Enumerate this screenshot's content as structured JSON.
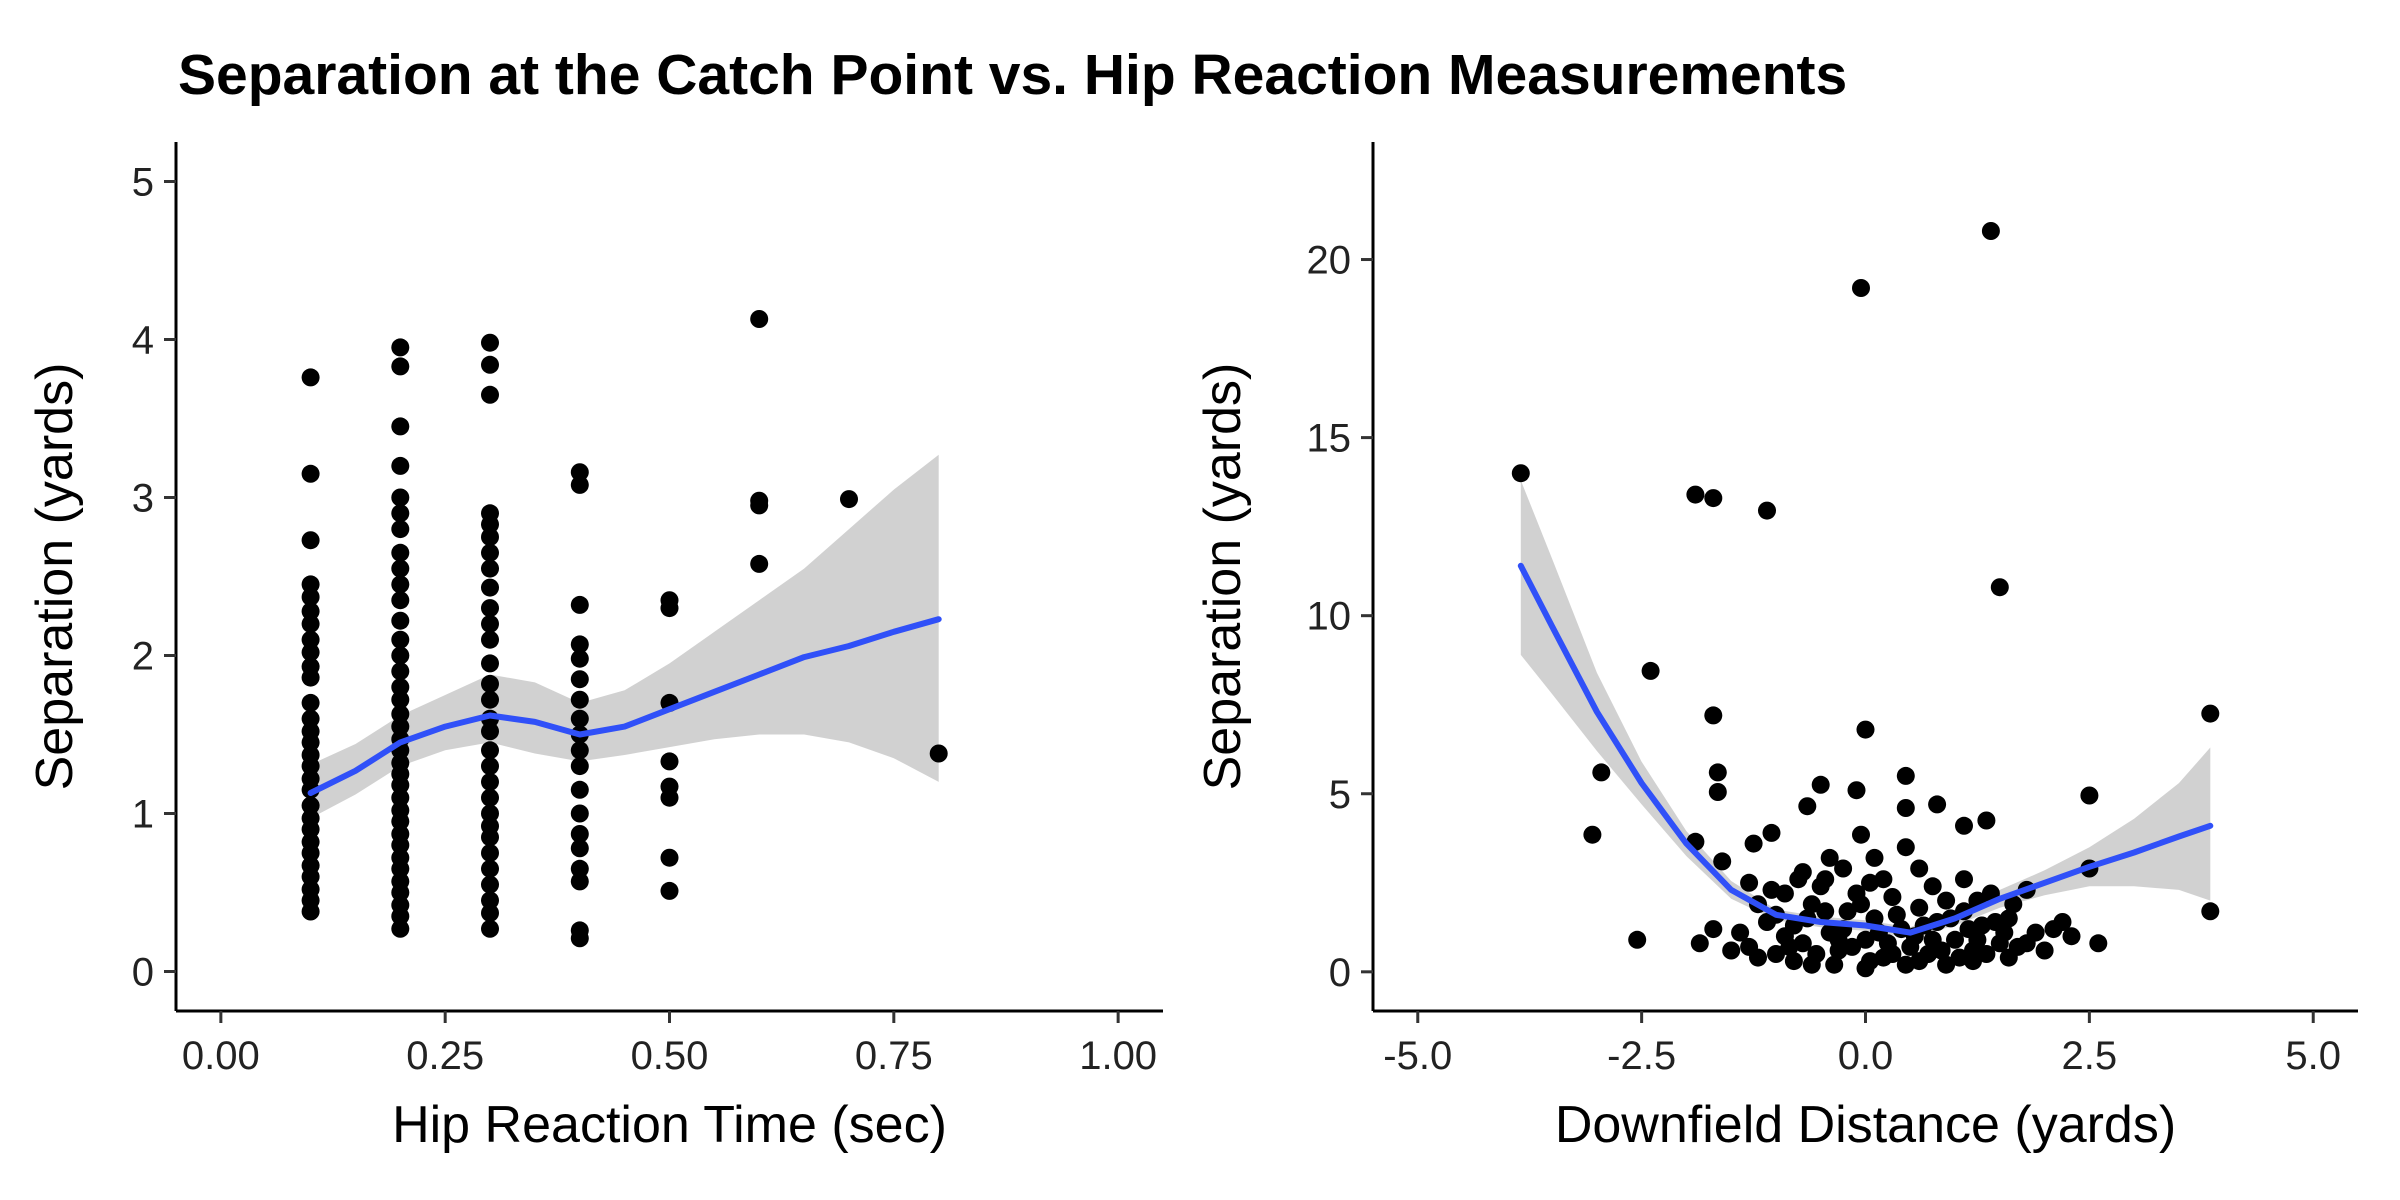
{
  "chart_data": [
    {
      "type": "scatter",
      "title": "Separation at the Catch Point vs. Hip Reaction Measurements",
      "xlabel": "Hip Reaction Time (sec)",
      "ylabel": "Separation (yards)",
      "xlim": [
        -0.05,
        1.05
      ],
      "ylim": [
        -0.25,
        5.25
      ],
      "xticks": [
        0.0,
        0.25,
        0.5,
        0.75,
        1.0
      ],
      "xtick_labels": [
        "0.00",
        "0.25",
        "0.50",
        "0.75",
        "1.00"
      ],
      "yticks": [
        0,
        1,
        2,
        3,
        4,
        5
      ],
      "ytick_labels": [
        "0",
        "1",
        "2",
        "3",
        "4",
        "5"
      ],
      "grid": false,
      "point_color": "#000000",
      "smooth_color": "#3050f8",
      "band_color": "#cccccc",
      "points": [
        [
          0.1,
          3.76
        ],
        [
          0.1,
          3.15
        ],
        [
          0.1,
          2.73
        ],
        [
          0.1,
          2.45
        ],
        [
          0.1,
          2.37
        ],
        [
          0.1,
          2.28
        ],
        [
          0.1,
          2.2
        ],
        [
          0.1,
          2.1
        ],
        [
          0.1,
          2.02
        ],
        [
          0.1,
          1.93
        ],
        [
          0.1,
          1.86
        ],
        [
          0.1,
          1.7
        ],
        [
          0.1,
          1.6
        ],
        [
          0.1,
          1.52
        ],
        [
          0.1,
          1.45
        ],
        [
          0.1,
          1.37
        ],
        [
          0.1,
          1.3
        ],
        [
          0.1,
          1.22
        ],
        [
          0.1,
          1.15
        ],
        [
          0.1,
          1.05
        ],
        [
          0.1,
          0.97
        ],
        [
          0.1,
          0.9
        ],
        [
          0.1,
          0.82
        ],
        [
          0.1,
          0.75
        ],
        [
          0.1,
          0.67
        ],
        [
          0.1,
          0.6
        ],
        [
          0.1,
          0.52
        ],
        [
          0.1,
          0.45
        ],
        [
          0.1,
          0.38
        ],
        [
          0.2,
          3.95
        ],
        [
          0.2,
          3.83
        ],
        [
          0.2,
          3.45
        ],
        [
          0.2,
          3.2
        ],
        [
          0.2,
          3.0
        ],
        [
          0.2,
          2.9
        ],
        [
          0.2,
          2.8
        ],
        [
          0.2,
          2.65
        ],
        [
          0.2,
          2.55
        ],
        [
          0.2,
          2.45
        ],
        [
          0.2,
          2.35
        ],
        [
          0.2,
          2.22
        ],
        [
          0.2,
          2.1
        ],
        [
          0.2,
          2.0
        ],
        [
          0.2,
          1.9
        ],
        [
          0.2,
          1.8
        ],
        [
          0.2,
          1.72
        ],
        [
          0.2,
          1.63
        ],
        [
          0.2,
          1.55
        ],
        [
          0.2,
          1.47
        ],
        [
          0.2,
          1.4
        ],
        [
          0.2,
          1.32
        ],
        [
          0.2,
          1.25
        ],
        [
          0.2,
          1.18
        ],
        [
          0.2,
          1.1
        ],
        [
          0.2,
          1.02
        ],
        [
          0.2,
          0.95
        ],
        [
          0.2,
          0.87
        ],
        [
          0.2,
          0.8
        ],
        [
          0.2,
          0.72
        ],
        [
          0.2,
          0.65
        ],
        [
          0.2,
          0.57
        ],
        [
          0.2,
          0.5
        ],
        [
          0.2,
          0.42
        ],
        [
          0.2,
          0.35
        ],
        [
          0.2,
          0.27
        ],
        [
          0.3,
          3.98
        ],
        [
          0.3,
          3.84
        ],
        [
          0.3,
          3.65
        ],
        [
          0.3,
          2.9
        ],
        [
          0.3,
          2.83
        ],
        [
          0.3,
          2.75
        ],
        [
          0.3,
          2.65
        ],
        [
          0.3,
          2.55
        ],
        [
          0.3,
          2.43
        ],
        [
          0.3,
          2.3
        ],
        [
          0.3,
          2.2
        ],
        [
          0.3,
          2.1
        ],
        [
          0.3,
          1.95
        ],
        [
          0.3,
          1.82
        ],
        [
          0.3,
          1.72
        ],
        [
          0.3,
          1.6
        ],
        [
          0.3,
          1.52
        ],
        [
          0.3,
          1.4
        ],
        [
          0.3,
          1.3
        ],
        [
          0.3,
          1.2
        ],
        [
          0.3,
          1.1
        ],
        [
          0.3,
          1.0
        ],
        [
          0.3,
          0.92
        ],
        [
          0.3,
          0.85
        ],
        [
          0.3,
          0.75
        ],
        [
          0.3,
          0.65
        ],
        [
          0.3,
          0.55
        ],
        [
          0.3,
          0.45
        ],
        [
          0.3,
          0.37
        ],
        [
          0.3,
          0.27
        ],
        [
          0.4,
          3.16
        ],
        [
          0.4,
          3.08
        ],
        [
          0.4,
          2.32
        ],
        [
          0.4,
          2.07
        ],
        [
          0.4,
          1.98
        ],
        [
          0.4,
          1.85
        ],
        [
          0.4,
          1.72
        ],
        [
          0.4,
          1.6
        ],
        [
          0.4,
          1.5
        ],
        [
          0.4,
          1.4
        ],
        [
          0.4,
          1.3
        ],
        [
          0.4,
          1.15
        ],
        [
          0.4,
          1.0
        ],
        [
          0.4,
          0.87
        ],
        [
          0.4,
          0.78
        ],
        [
          0.4,
          0.65
        ],
        [
          0.4,
          0.57
        ],
        [
          0.4,
          0.26
        ],
        [
          0.4,
          0.21
        ],
        [
          0.5,
          2.35
        ],
        [
          0.5,
          2.3
        ],
        [
          0.5,
          1.7
        ],
        [
          0.5,
          1.33
        ],
        [
          0.5,
          1.17
        ],
        [
          0.5,
          1.1
        ],
        [
          0.5,
          0.72
        ],
        [
          0.5,
          0.51
        ],
        [
          0.6,
          4.13
        ],
        [
          0.6,
          2.98
        ],
        [
          0.6,
          2.95
        ],
        [
          0.6,
          2.58
        ],
        [
          0.7,
          2.99
        ],
        [
          0.8,
          1.38
        ]
      ],
      "smooth": [
        [
          0.1,
          1.13
        ],
        [
          0.15,
          1.27
        ],
        [
          0.2,
          1.45
        ],
        [
          0.25,
          1.55
        ],
        [
          0.3,
          1.62
        ],
        [
          0.35,
          1.58
        ],
        [
          0.4,
          1.5
        ],
        [
          0.45,
          1.55
        ],
        [
          0.5,
          1.66
        ],
        [
          0.55,
          1.77
        ],
        [
          0.6,
          1.88
        ],
        [
          0.65,
          1.99
        ],
        [
          0.7,
          2.06
        ],
        [
          0.75,
          2.15
        ],
        [
          0.8,
          2.23
        ]
      ],
      "band_upper": [
        [
          0.1,
          1.31
        ],
        [
          0.15,
          1.44
        ],
        [
          0.2,
          1.62
        ],
        [
          0.25,
          1.75
        ],
        [
          0.3,
          1.88
        ],
        [
          0.35,
          1.83
        ],
        [
          0.4,
          1.7
        ],
        [
          0.45,
          1.78
        ],
        [
          0.5,
          1.95
        ],
        [
          0.55,
          2.15
        ],
        [
          0.6,
          2.35
        ],
        [
          0.65,
          2.55
        ],
        [
          0.7,
          2.8
        ],
        [
          0.75,
          3.05
        ],
        [
          0.8,
          3.27
        ]
      ],
      "band_lower": [
        [
          0.1,
          0.97
        ],
        [
          0.15,
          1.12
        ],
        [
          0.2,
          1.3
        ],
        [
          0.25,
          1.4
        ],
        [
          0.3,
          1.45
        ],
        [
          0.35,
          1.38
        ],
        [
          0.4,
          1.33
        ],
        [
          0.45,
          1.37
        ],
        [
          0.5,
          1.42
        ],
        [
          0.55,
          1.47
        ],
        [
          0.6,
          1.5
        ],
        [
          0.65,
          1.5
        ],
        [
          0.7,
          1.45
        ],
        [
          0.75,
          1.35
        ],
        [
          0.8,
          1.2
        ]
      ]
    },
    {
      "type": "scatter",
      "xlabel": "Downfield Distance (yards)",
      "ylabel": "Separation (yards)",
      "xlim": [
        -5.5,
        5.5
      ],
      "ylim": [
        -1.1,
        23.3
      ],
      "xticks": [
        -5.0,
        -2.5,
        0.0,
        2.5,
        5.0
      ],
      "xtick_labels": [
        "-5.0",
        "-2.5",
        "0.0",
        "2.5",
        "5.0"
      ],
      "yticks": [
        0,
        5,
        10,
        15,
        20
      ],
      "ytick_labels": [
        "0",
        "5",
        "10",
        "15",
        "20"
      ],
      "grid": false,
      "point_color": "#000000",
      "smooth_color": "#3050f8",
      "band_color": "#cccccc",
      "points": [
        [
          -3.85,
          14.0
        ],
        [
          -1.9,
          13.4
        ],
        [
          -1.7,
          13.3
        ],
        [
          -1.1,
          12.95
        ],
        [
          -0.05,
          19.2
        ],
        [
          1.4,
          20.8
        ],
        [
          1.5,
          10.8
        ],
        [
          -2.4,
          8.45
        ],
        [
          -1.7,
          7.2
        ],
        [
          0.0,
          6.8
        ],
        [
          3.85,
          7.25
        ],
        [
          -2.95,
          5.6
        ],
        [
          -3.05,
          3.85
        ],
        [
          -2.55,
          0.9
        ],
        [
          -1.65,
          5.6
        ],
        [
          -1.65,
          5.05
        ],
        [
          -0.5,
          5.25
        ],
        [
          0.45,
          5.5
        ],
        [
          0.45,
          4.6
        ],
        [
          0.8,
          4.7
        ],
        [
          1.1,
          4.1
        ],
        [
          1.35,
          4.25
        ],
        [
          2.5,
          4.95
        ],
        [
          -0.1,
          5.1
        ],
        [
          -1.05,
          3.9
        ],
        [
          -1.25,
          3.6
        ],
        [
          -0.65,
          4.65
        ],
        [
          -0.05,
          3.85
        ],
        [
          0.45,
          3.5
        ],
        [
          -1.9,
          3.65
        ],
        [
          -1.6,
          3.1
        ],
        [
          2.5,
          2.9
        ],
        [
          3.85,
          1.7
        ],
        [
          2.6,
          0.8
        ],
        [
          -1.85,
          0.8
        ],
        [
          -1.7,
          1.2
        ],
        [
          -0.4,
          3.2
        ],
        [
          0.1,
          3.2
        ],
        [
          -0.7,
          2.8
        ],
        [
          0.6,
          2.9
        ],
        [
          -1.3,
          2.5
        ],
        [
          1.1,
          2.6
        ],
        [
          1.8,
          2.3
        ],
        [
          2.1,
          1.2
        ],
        [
          2.3,
          1.0
        ],
        [
          -1.2,
          1.9
        ],
        [
          -1.0,
          1.6
        ],
        [
          -0.9,
          2.2
        ],
        [
          -0.8,
          1.3
        ],
        [
          -0.7,
          0.8
        ],
        [
          -0.6,
          1.9
        ],
        [
          -0.5,
          2.4
        ],
        [
          -0.4,
          1.1
        ],
        [
          -0.3,
          0.6
        ],
        [
          -0.2,
          1.7
        ],
        [
          -0.1,
          2.2
        ],
        [
          0.0,
          0.9
        ],
        [
          0.1,
          1.5
        ],
        [
          0.2,
          0.4
        ],
        [
          0.3,
          2.1
        ],
        [
          0.4,
          1.2
        ],
        [
          0.5,
          0.7
        ],
        [
          0.6,
          1.8
        ],
        [
          0.7,
          0.5
        ],
        [
          0.8,
          1.4
        ],
        [
          0.9,
          2.0
        ],
        [
          1.0,
          0.9
        ],
        [
          1.1,
          1.7
        ],
        [
          1.2,
          0.6
        ],
        [
          1.3,
          1.3
        ],
        [
          1.4,
          2.2
        ],
        [
          1.5,
          0.8
        ],
        [
          1.6,
          1.5
        ],
        [
          1.7,
          0.7
        ],
        [
          1.9,
          1.1
        ],
        [
          2.0,
          0.6
        ],
        [
          -1.4,
          1.1
        ],
        [
          -1.3,
          0.7
        ],
        [
          -1.1,
          1.4
        ],
        [
          -1.0,
          0.5
        ],
        [
          -0.9,
          1.0
        ],
        [
          -0.8,
          0.3
        ],
        [
          -0.65,
          1.5
        ],
        [
          -0.55,
          0.5
        ],
        [
          -0.45,
          1.7
        ],
        [
          -0.35,
          0.2
        ],
        [
          -0.25,
          1.2
        ],
        [
          -0.15,
          0.7
        ],
        [
          -0.05,
          1.9
        ],
        [
          0.05,
          0.3
        ],
        [
          0.15,
          1.1
        ],
        [
          0.25,
          0.8
        ],
        [
          0.35,
          1.6
        ],
        [
          0.45,
          0.2
        ],
        [
          0.55,
          1.0
        ],
        [
          0.65,
          1.3
        ],
        [
          0.75,
          0.9
        ],
        [
          0.85,
          0.6
        ],
        [
          0.95,
          1.5
        ],
        [
          1.05,
          0.4
        ],
        [
          1.15,
          1.2
        ],
        [
          1.25,
          0.9
        ],
        [
          1.35,
          0.5
        ],
        [
          1.45,
          1.4
        ],
        [
          1.55,
          1.1
        ],
        [
          -1.5,
          0.6
        ],
        [
          -1.2,
          0.4
        ],
        [
          -0.85,
          0.7
        ],
        [
          -0.6,
          0.2
        ],
        [
          -0.3,
          0.9
        ],
        [
          0.0,
          0.1
        ],
        [
          0.3,
          0.5
        ],
        [
          0.6,
          0.3
        ],
        [
          0.9,
          0.2
        ],
        [
          1.2,
          0.3
        ],
        [
          1.6,
          0.4
        ],
        [
          1.8,
          0.8
        ],
        [
          -0.75,
          2.6
        ],
        [
          -0.25,
          2.9
        ],
        [
          0.2,
          2.6
        ],
        [
          0.75,
          2.4
        ],
        [
          1.25,
          2.0
        ],
        [
          -0.45,
          2.6
        ],
        [
          0.05,
          2.5
        ],
        [
          -1.05,
          2.3
        ],
        [
          1.65,
          1.9
        ],
        [
          2.2,
          1.4
        ]
      ],
      "smooth": [
        [
          -3.85,
          11.4
        ],
        [
          -3.5,
          9.7
        ],
        [
          -3.0,
          7.3
        ],
        [
          -2.5,
          5.3
        ],
        [
          -2.0,
          3.6
        ],
        [
          -1.5,
          2.3
        ],
        [
          -1.0,
          1.6
        ],
        [
          -0.5,
          1.4
        ],
        [
          0.0,
          1.3
        ],
        [
          0.5,
          1.1
        ],
        [
          1.0,
          1.5
        ],
        [
          1.5,
          2.05
        ],
        [
          2.0,
          2.5
        ],
        [
          2.5,
          2.95
        ],
        [
          3.0,
          3.35
        ],
        [
          3.5,
          3.8
        ],
        [
          3.85,
          4.1
        ]
      ],
      "band_upper": [
        [
          -3.85,
          13.8
        ],
        [
          -3.5,
          11.6
        ],
        [
          -3.0,
          8.4
        ],
        [
          -2.5,
          5.9
        ],
        [
          -2.0,
          3.95
        ],
        [
          -1.5,
          2.55
        ],
        [
          -1.0,
          1.75
        ],
        [
          -0.5,
          1.55
        ],
        [
          0.0,
          1.45
        ],
        [
          0.5,
          1.25
        ],
        [
          1.0,
          1.75
        ],
        [
          1.5,
          2.3
        ],
        [
          2.0,
          2.85
        ],
        [
          2.5,
          3.5
        ],
        [
          3.0,
          4.3
        ],
        [
          3.5,
          5.3
        ],
        [
          3.85,
          6.3
        ]
      ],
      "band_lower": [
        [
          -3.85,
          8.9
        ],
        [
          -3.5,
          7.8
        ],
        [
          -3.0,
          6.2
        ],
        [
          -2.5,
          4.7
        ],
        [
          -2.0,
          3.25
        ],
        [
          -1.5,
          2.05
        ],
        [
          -1.0,
          1.45
        ],
        [
          -0.5,
          1.25
        ],
        [
          0.0,
          1.15
        ],
        [
          0.5,
          0.95
        ],
        [
          1.0,
          1.3
        ],
        [
          1.5,
          1.8
        ],
        [
          2.0,
          2.15
        ],
        [
          2.5,
          2.4
        ],
        [
          3.0,
          2.4
        ],
        [
          3.5,
          2.3
        ],
        [
          3.85,
          2.0
        ]
      ]
    }
  ]
}
